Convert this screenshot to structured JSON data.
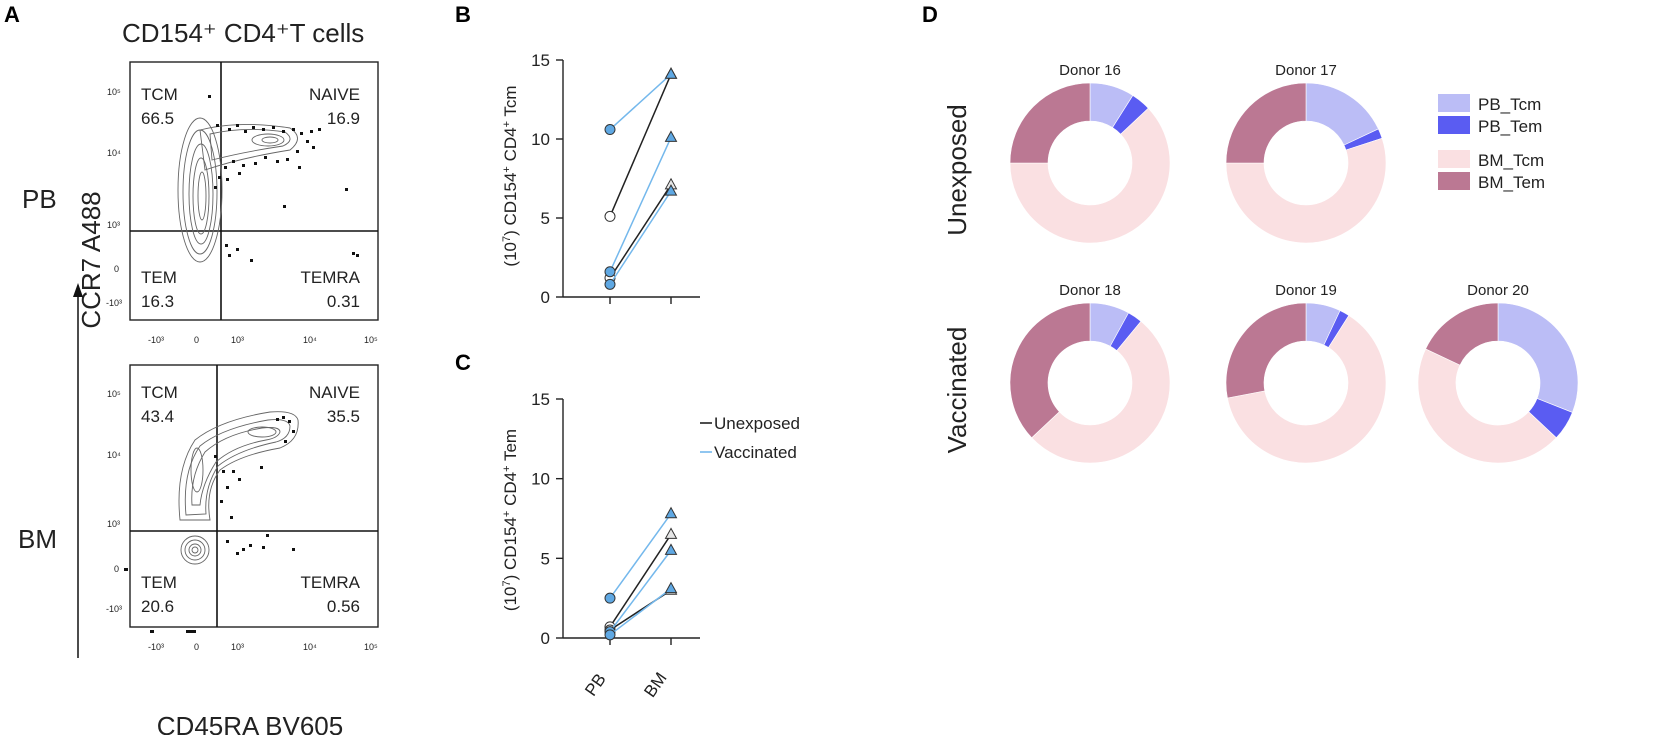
{
  "chart_data": [
    {
      "panel": "A",
      "type": "scatter",
      "title": "CD154⁺ CD4⁺T cells",
      "xlabel": "CD45RA BV605",
      "ylabel": "CCR7 A488",
      "x_ticks": [
        "-10³",
        "0",
        "10³",
        "10⁴",
        "10⁵"
      ],
      "y_ticks": [
        "10⁵",
        "10⁴",
        "10³",
        "0",
        "-10³"
      ],
      "plots": [
        {
          "row_label": "PB",
          "quadrants": [
            {
              "name": "TCM",
              "value": "66.5"
            },
            {
              "name": "NAIVE",
              "value": "16.9"
            },
            {
              "name": "TEM",
              "value": "16.3"
            },
            {
              "name": "TEMRA",
              "value": "0.31"
            }
          ]
        },
        {
          "row_label": "BM",
          "quadrants": [
            {
              "name": "TCM",
              "value": "43.4"
            },
            {
              "name": "NAIVE",
              "value": "35.5"
            },
            {
              "name": "TEM",
              "value": "20.6"
            },
            {
              "name": "TEMRA",
              "value": "0.56"
            }
          ]
        }
      ]
    },
    {
      "panel": "B",
      "type": "line",
      "ylabel_main": "(10",
      "ylabel_sup1": "7",
      "ylabel_rest": ") CD154",
      "ylabel_sup2": "+",
      "ylabel_rest2": " CD4",
      "ylabel_sup3": "+",
      "ylabel_end": " Tcm",
      "ylim": [
        0,
        15
      ],
      "yticks": [
        "0",
        "5",
        "10",
        "15"
      ],
      "categories": [
        "PB",
        "BM"
      ],
      "series": [
        {
          "name": "Unexposed",
          "group": "Unexposed",
          "values": [
            5.1,
            14.1
          ]
        },
        {
          "name": "Unexposed",
          "group": "Unexposed",
          "values": [
            1.2,
            7.1
          ]
        },
        {
          "name": "Vaccinated",
          "group": "Vaccinated",
          "values": [
            10.6,
            14.1
          ]
        },
        {
          "name": "Vaccinated",
          "group": "Vaccinated",
          "values": [
            1.6,
            10.1
          ]
        },
        {
          "name": "Vaccinated",
          "group": "Vaccinated",
          "values": [
            0.8,
            6.7
          ]
        }
      ]
    },
    {
      "panel": "C",
      "type": "line",
      "ylabel_main": "(10",
      "ylabel_sup1": "7",
      "ylabel_rest": ") CD154",
      "ylabel_sup2": "+",
      "ylabel_rest2": " CD4",
      "ylabel_sup3": "+",
      "ylabel_end": " Tem",
      "ylim": [
        0,
        15
      ],
      "yticks": [
        "0",
        "5",
        "10",
        "15"
      ],
      "categories": [
        "PB",
        "BM"
      ],
      "legend": [
        "Unexposed",
        "Vaccinated"
      ],
      "series": [
        {
          "name": "Unexposed",
          "group": "Unexposed",
          "values": [
            0.7,
            6.5
          ]
        },
        {
          "name": "Unexposed",
          "group": "Unexposed",
          "values": [
            0.5,
            3.0
          ]
        },
        {
          "name": "Vaccinated",
          "group": "Vaccinated",
          "values": [
            2.5,
            7.8
          ]
        },
        {
          "name": "Vaccinated",
          "group": "Vaccinated",
          "values": [
            0.4,
            5.5
          ]
        },
        {
          "name": "Vaccinated",
          "group": "Vaccinated",
          "values": [
            0.2,
            3.1
          ]
        }
      ]
    },
    {
      "panel": "D",
      "type": "pie",
      "row_labels": [
        "Unexposed",
        "Vaccinated"
      ],
      "legend": [
        {
          "label": "PB_Tcm",
          "color": "#bbbdf6"
        },
        {
          "label": "PB_Tem",
          "color": "#5a5cf2"
        },
        {
          "label": "BM_Tcm",
          "color": "#fae0e2"
        },
        {
          "label": "BM_Tem",
          "color": "#bb7893"
        }
      ],
      "donuts": [
        {
          "title": "Donor 16",
          "group": "Unexposed",
          "values": [
            9,
            4,
            62,
            25
          ]
        },
        {
          "title": "Donor 17",
          "group": "Unexposed",
          "values": [
            18,
            2,
            55,
            25
          ]
        },
        {
          "title": "Donor 18",
          "group": "Vaccinated",
          "values": [
            8,
            3,
            52,
            37
          ]
        },
        {
          "title": "Donor 19",
          "group": "Vaccinated",
          "values": [
            7,
            2,
            63,
            28
          ]
        },
        {
          "title": "Donor 20",
          "group": "Vaccinated",
          "values": [
            31,
            6,
            45,
            18
          ]
        }
      ]
    }
  ],
  "colors": {
    "unexposed_line": "#222222",
    "vaccinated_line": "#74b8ec",
    "vaccinated_marker": "#5fa8e3",
    "unexposed_marker_fill": "#ffffff"
  }
}
